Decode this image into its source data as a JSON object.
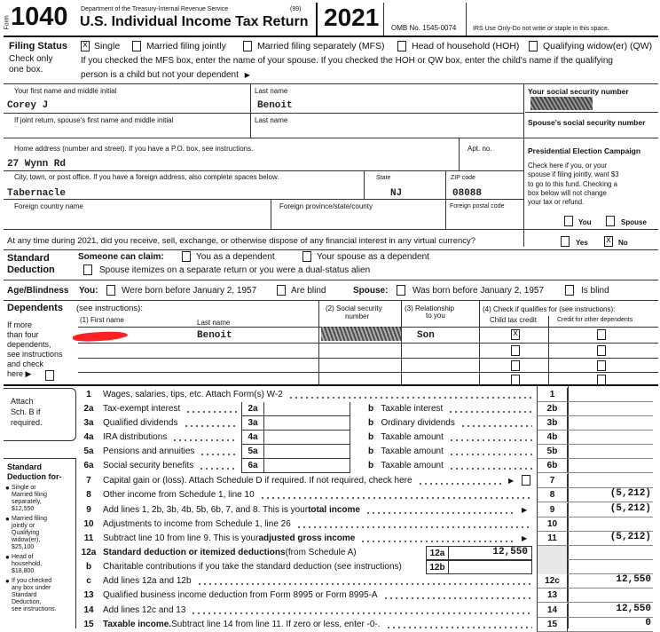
{
  "header": {
    "form_label": "Form",
    "form_number": "1040",
    "dept": "Department of the Treasury-Internal Revenue Service",
    "code": "(99)",
    "title": "U.S. Individual Income Tax Return",
    "year": "2021",
    "omb": "OMB No. 1545-0074",
    "irs_use": "IRS Use Only-Do not write or staple in this space."
  },
  "filing_status": {
    "label": "Filing Status",
    "note1": "Check only",
    "note2": "one box.",
    "options": [
      {
        "label": "Single",
        "checked": true
      },
      {
        "label": "Married filing jointly",
        "checked": false
      },
      {
        "label": "Married filing separately (MFS)",
        "checked": false
      },
      {
        "label": "Head of household (HOH)",
        "checked": false
      },
      {
        "label": "Qualifying widow(er) (QW)",
        "checked": false
      }
    ],
    "instruction1": "If you checked the MFS box, enter the name of your spouse. If you checked the HOH or QW box, enter the child's name if the qualifying",
    "instruction2": "person is a child but not your dependent"
  },
  "taxpayer": {
    "first_label": "Your first name and middle initial",
    "first": "Corey J",
    "last_label": "Last name",
    "last": "Benoit",
    "ssn_label": "Your social security number",
    "spouse_first_label": "If joint return, spouse's first name and middle initial",
    "spouse_last_label": "Last name",
    "spouse_ssn_label": "Spouse's social security number"
  },
  "address": {
    "street_label": "Home address (number and street). If you have a P.O. box, see instructions.",
    "street": "27 Wynn Rd",
    "apt_label": "Apt. no.",
    "city_label": "City, town, or post office. If you have a foreign address, also complete spaces below.",
    "city": "Tabernacle",
    "state_label": "State",
    "state": "NJ",
    "zip_label": "ZIP code",
    "zip": "08088",
    "country_label": "Foreign country name",
    "province_label": "Foreign province/state/county",
    "postal_label": "Foreign postal code"
  },
  "campaign": {
    "title": "Presidential Election Campaign",
    "lines": [
      "Check here if you, or your",
      "spouse if filing jointly, want $3",
      "to go to this fund. Checking a",
      "box below will not change",
      "your tax or refund."
    ],
    "you": "You",
    "spouse": "Spouse"
  },
  "virtual_currency": {
    "question": "At any time during 2021, did you receive, sell, exchange, or otherwise dispose of any financial interest in any virtual currency?",
    "yes": "Yes",
    "no": "No",
    "answer": "No"
  },
  "standard_deduction": {
    "title1": "Standard",
    "title2": "Deduction",
    "someone": "Someone can claim:",
    "you_dep": "You as a dependent",
    "spouse_dep": "Your spouse as a dependent",
    "itemizes": "Spouse itemizes on a separate return or you were a dual-status alien"
  },
  "age": {
    "title": "Age/Blindness",
    "you": "You:",
    "born": "Were born before January 2, 1957",
    "blind": "Are blind",
    "spouse": "Spouse:",
    "sp_born": "Was born before January 2, 1957",
    "sp_blind": "Is blind"
  },
  "dependents": {
    "title": "Dependents",
    "see": "(see instructions):",
    "col1": "(1) First name",
    "col1b": "Last name",
    "col2a": "(2) Social security",
    "col2b": "number",
    "col3a": "(3)  Relationship",
    "col3b": "to you",
    "col4": "(4) Check if qualifies for (see instructions):",
    "col4a": "Child tax credit",
    "col4b": "Credit for other dependents",
    "side": [
      "If more",
      "than four",
      "dependents,",
      "see instructions",
      "and check",
      "here ▶"
    ],
    "rows": [
      {
        "last": "Benoit",
        "relationship": "Son",
        "child_credit": true,
        "other_credit": false
      },
      {
        "last": "",
        "relationship": "",
        "child_credit": false,
        "other_credit": false
      },
      {
        "last": "",
        "relationship": "",
        "child_credit": false,
        "other_credit": false
      },
      {
        "last": "",
        "relationship": "",
        "child_credit": false,
        "other_credit": false
      }
    ]
  },
  "sidebar": {
    "attach": [
      "Attach",
      "Sch. B if",
      "required."
    ],
    "std_title": [
      "Standard",
      "Deduction for-"
    ],
    "bullets": [
      [
        "Single or",
        "Married filing",
        "separately,",
        "$12,550"
      ],
      [
        "Married filing",
        "jointly or",
        "Qualifying",
        "widow(er),",
        "$25,100"
      ],
      [
        "Head of",
        "household,",
        "$18,800"
      ],
      [
        "If you checked",
        "any box under",
        "Standard",
        "Deduction,",
        "see instructions."
      ]
    ]
  },
  "income": [
    {
      "num": "1",
      "desc": "Wages, salaries, tips, etc. Attach Form(s) W-2",
      "code": "1",
      "amount": ""
    },
    {
      "num": "2a",
      "desc": "Tax-exempt interest",
      "inner": "2a",
      "inner_amount": "",
      "b": "Taxable interest",
      "code": "2b",
      "amount": ""
    },
    {
      "num": "3a",
      "desc": "Qualified dividends",
      "inner": "3a",
      "inner_amount": "",
      "b": "Ordinary dividends",
      "code": "3b",
      "amount": ""
    },
    {
      "num": "4a",
      "desc": "IRA distributions",
      "inner": "4a",
      "inner_amount": "",
      "b": "Taxable amount",
      "code": "4b",
      "amount": ""
    },
    {
      "num": "5a",
      "desc": "Pensions and annuities",
      "inner": "5a",
      "inner_amount": "",
      "b": "Taxable amount",
      "code": "5b",
      "amount": ""
    },
    {
      "num": "6a",
      "desc": "Social security benefits",
      "inner": "6a",
      "inner_amount": "",
      "b": "Taxable amount",
      "code": "6b",
      "amount": ""
    },
    {
      "num": "7",
      "desc": "Capital gain or (loss). Attach Schedule D if required. If not required, check here",
      "checkbox": true,
      "code": "7",
      "amount": ""
    },
    {
      "num": "8",
      "desc": "Other income from Schedule 1, line 10",
      "code": "8",
      "amount": "(5,212)"
    },
    {
      "num": "9",
      "desc": "Add lines 1, 2b, 3b, 4b, 5b, 6b, 7, and 8. This is your ",
      "bold": "total income",
      "arrow": true,
      "code": "9",
      "amount": "(5,212)"
    },
    {
      "num": "10",
      "desc": "Adjustments to income from Schedule 1, line 26",
      "code": "10",
      "amount": ""
    },
    {
      "num": "11",
      "desc": "Subtract line 10 from line 9. This is your ",
      "bold": "adjusted gross income",
      "arrow": true,
      "code": "11",
      "amount": "(5,212)"
    },
    {
      "num": "12a",
      "bold_first": "Standard deduction or itemized deductions",
      "desc": " (from Schedule A)",
      "inner2": "12a",
      "inner_amount": "12,550",
      "code": "",
      "amount": "",
      "shaded": true
    },
    {
      "num": "b",
      "desc": "Charitable contributions if you take the standard deduction (see instructions)",
      "inner2": "12b",
      "inner_amount": "",
      "code": "",
      "amount": "",
      "shaded": true
    },
    {
      "num": "c",
      "desc": "Add lines 12a and 12b",
      "code": "12c",
      "amount": "12,550"
    },
    {
      "num": "13",
      "desc": "Qualified business income deduction from Form 8995 or Form 8995-A",
      "code": "13",
      "amount": ""
    },
    {
      "num": "14",
      "desc": "Add lines 12c and 13",
      "code": "14",
      "amount": "12,550"
    },
    {
      "num": "15",
      "bold_first": "Taxable income.",
      "desc": " Subtract line 14 from line 11. If zero or less, enter -0-.",
      "code": "15",
      "amount": "0"
    }
  ]
}
